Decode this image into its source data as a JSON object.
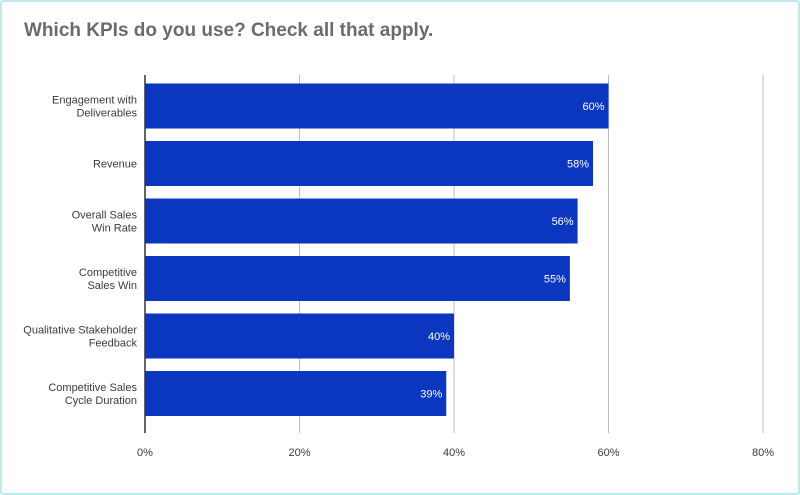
{
  "chart_data": {
    "type": "bar",
    "orientation": "horizontal",
    "title": "Which KPIs do you use? Check all that apply.",
    "categories": [
      [
        "Engagement with",
        "Deliverables"
      ],
      [
        "Revenue"
      ],
      [
        "Overall Sales",
        "Win Rate"
      ],
      [
        "Competitive",
        "Sales Win"
      ],
      [
        "Qualitative Stakeholder",
        "Feedback"
      ],
      [
        "Competitive Sales",
        "Cycle Duration"
      ]
    ],
    "values": [
      60,
      58,
      56,
      55,
      40,
      39
    ],
    "data_labels": [
      "60%",
      "58%",
      "56%",
      "55%",
      "40%",
      "39%"
    ],
    "xlim": [
      0,
      80
    ],
    "xticks": [
      0,
      20,
      40,
      60,
      80
    ],
    "xtick_labels": [
      "0%",
      "20%",
      "40%",
      "60%",
      "80%"
    ],
    "xlabel": "",
    "ylabel": "",
    "grid": "vertical",
    "legend": "none",
    "bar_color": "#0a36c0",
    "grid_color": "#bdbdbd",
    "axis_color": "#333333"
  }
}
